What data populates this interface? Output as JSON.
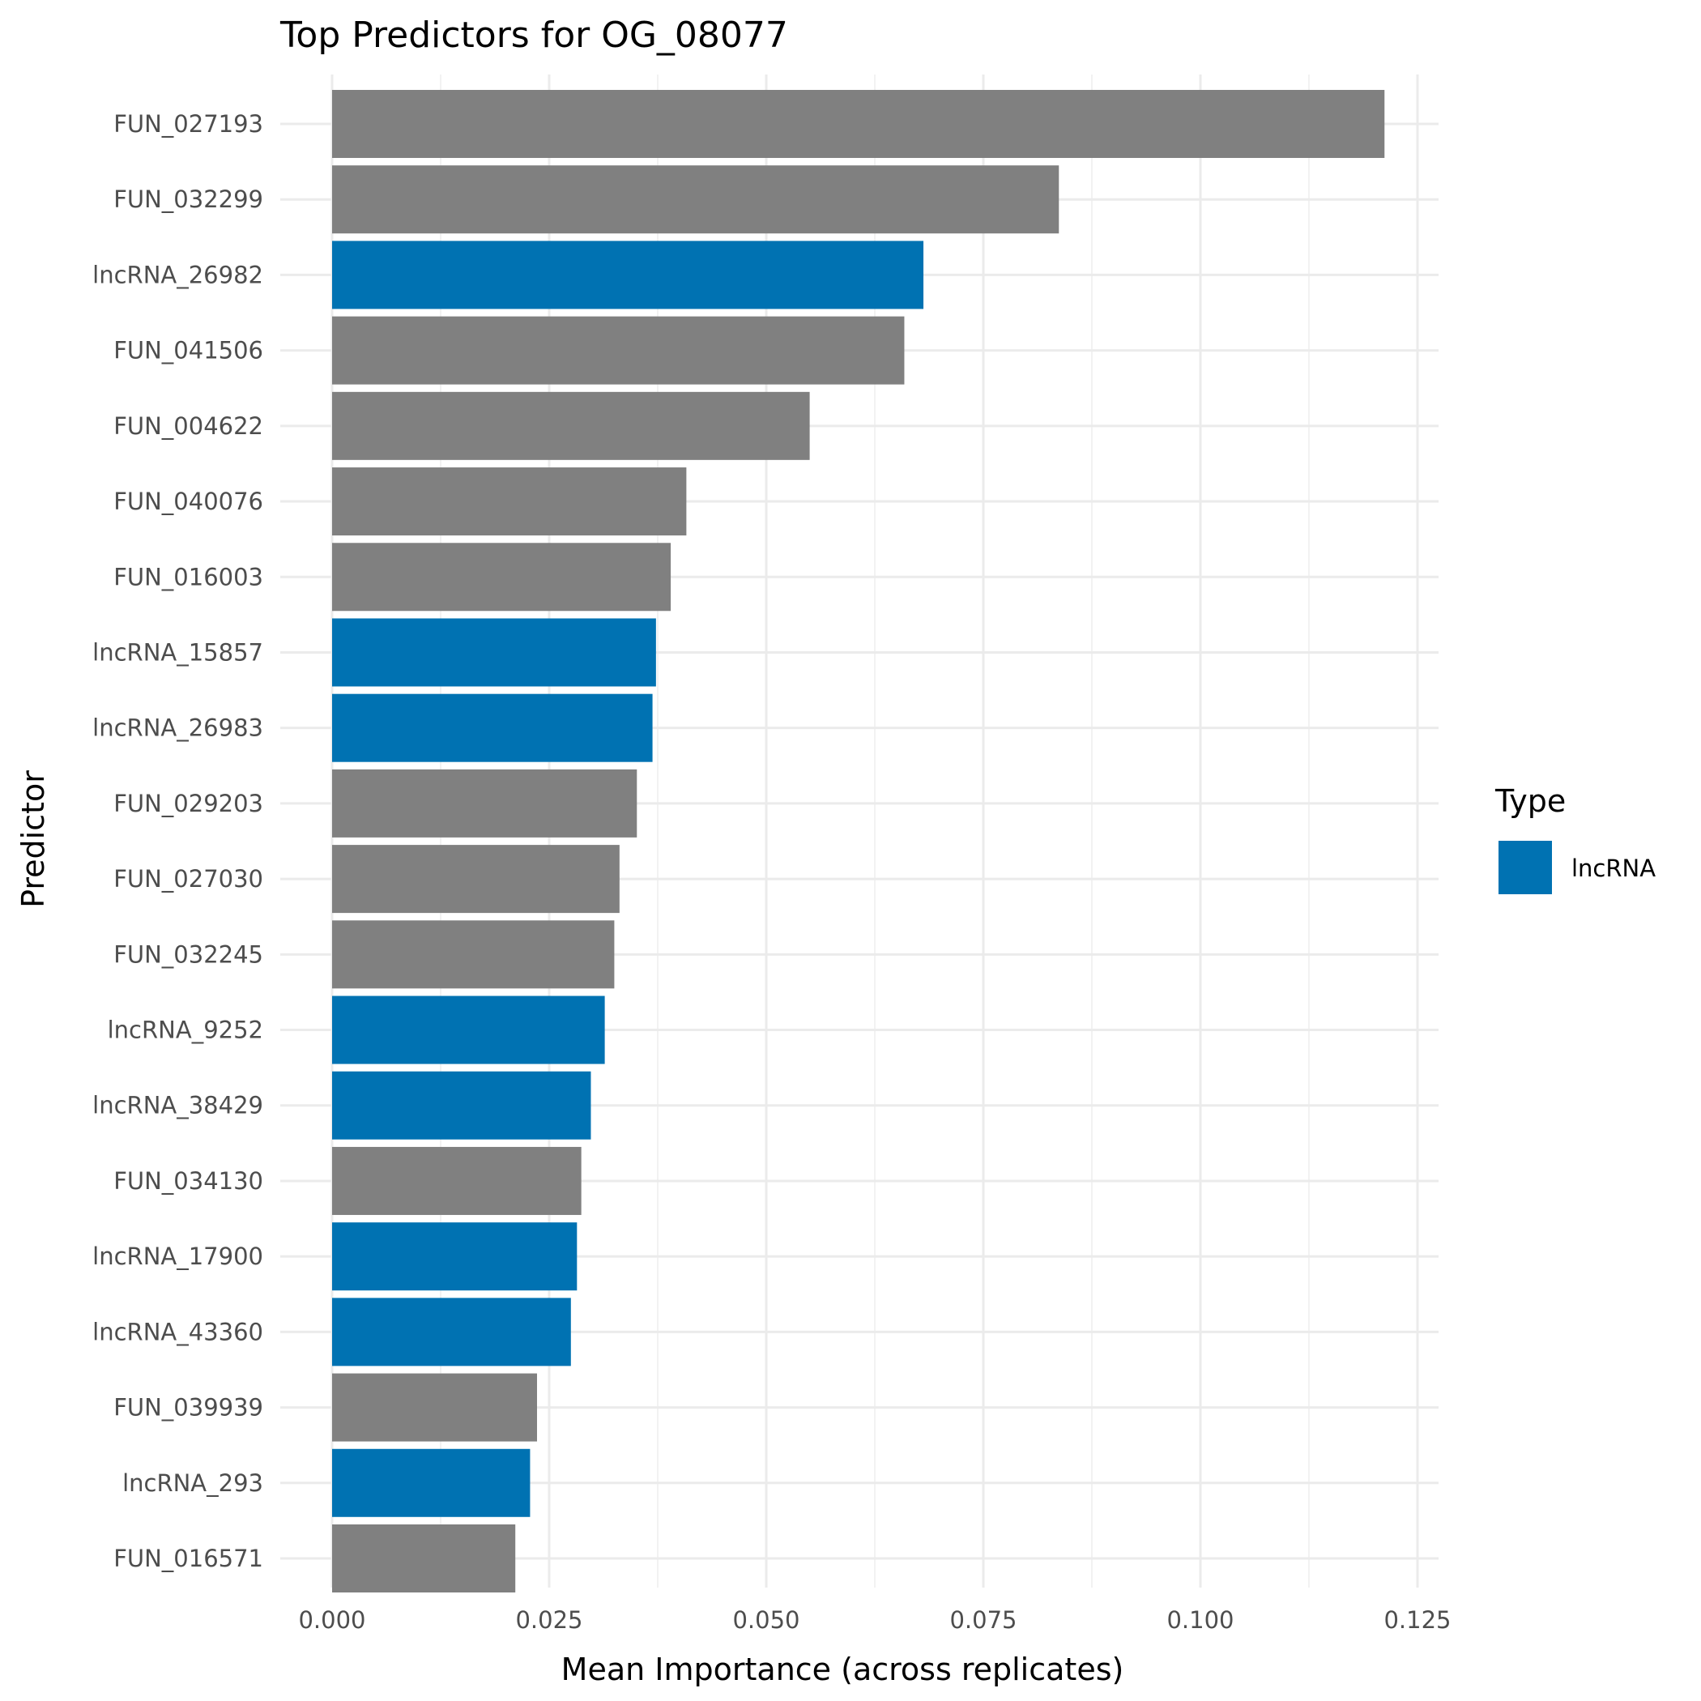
{
  "chart_data": {
    "type": "bar",
    "orientation": "horizontal",
    "title": "Top Predictors for OG_08077",
    "xlabel": "Mean Importance (across replicates)",
    "ylabel": "Predictor",
    "xlim": [
      0,
      0.125
    ],
    "xticks": [
      "0.000",
      "0.025",
      "0.050",
      "0.075",
      "0.100",
      "0.125"
    ],
    "grid": true,
    "legend": {
      "title": "Type",
      "placement": "right",
      "entries": [
        {
          "label": "lncRNA",
          "color": "#0072B2"
        }
      ]
    },
    "colors": {
      "lncRNA": "#0072B2",
      "other": "#808080"
    },
    "bars": [
      {
        "name": "FUN_027193",
        "value": 0.1212,
        "type": "other"
      },
      {
        "name": "FUN_032299",
        "value": 0.0837,
        "type": "other"
      },
      {
        "name": "lncRNA_26982",
        "value": 0.0681,
        "type": "lncRNA"
      },
      {
        "name": "FUN_041506",
        "value": 0.0659,
        "type": "other"
      },
      {
        "name": "FUN_004622",
        "value": 0.055,
        "type": "other"
      },
      {
        "name": "FUN_040076",
        "value": 0.0408,
        "type": "other"
      },
      {
        "name": "FUN_016003",
        "value": 0.039,
        "type": "other"
      },
      {
        "name": "lncRNA_15857",
        "value": 0.0373,
        "type": "lncRNA"
      },
      {
        "name": "lncRNA_26983",
        "value": 0.0369,
        "type": "lncRNA"
      },
      {
        "name": "FUN_029203",
        "value": 0.0351,
        "type": "other"
      },
      {
        "name": "FUN_027030",
        "value": 0.0331,
        "type": "other"
      },
      {
        "name": "FUN_032245",
        "value": 0.0325,
        "type": "other"
      },
      {
        "name": "lncRNA_9252",
        "value": 0.0314,
        "type": "lncRNA"
      },
      {
        "name": "lncRNA_38429",
        "value": 0.0298,
        "type": "lncRNA"
      },
      {
        "name": "FUN_034130",
        "value": 0.0287,
        "type": "other"
      },
      {
        "name": "lncRNA_17900",
        "value": 0.0282,
        "type": "lncRNA"
      },
      {
        "name": "lncRNA_43360",
        "value": 0.0275,
        "type": "lncRNA"
      },
      {
        "name": "FUN_039939",
        "value": 0.0236,
        "type": "other"
      },
      {
        "name": "lncRNA_293",
        "value": 0.0228,
        "type": "lncRNA"
      },
      {
        "name": "FUN_016571",
        "value": 0.0211,
        "type": "other"
      }
    ]
  }
}
